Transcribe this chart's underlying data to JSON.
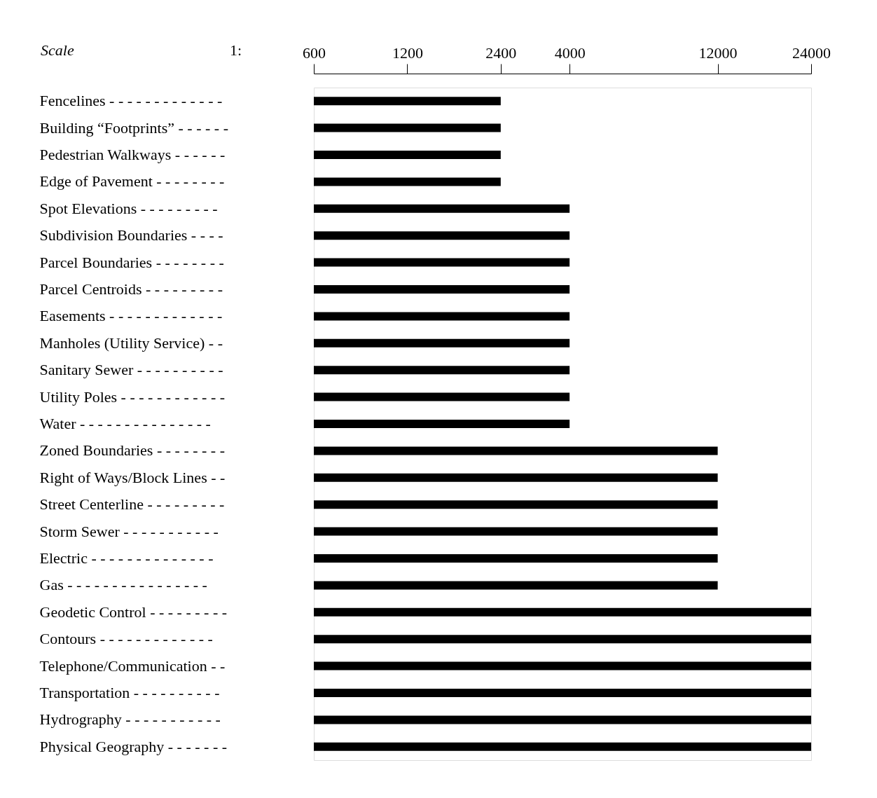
{
  "chart_data": {
    "type": "bar",
    "orientation": "horizontal",
    "xlabel": "Scale",
    "annotations": [
      "1:"
    ],
    "categories": [
      "Fencelines - - - - - - - - - - - - -",
      "Building “Footprints” - - - - - -",
      "Pedestrian Walkways - - - - - -",
      "Edge of Pavement  - - - - - - - -",
      "Spot Elevations   - - - - - - - - -",
      "Subdivision Boundaries  - - - -",
      "Parcel Boundaries - - - - - - - -",
      "Parcel Centroids  - - - - - - - - -",
      "Easements  - - - - - - - - - - - - -",
      "Manholes (Utility Service)  - -",
      "Sanitary Sewer - - - - - - - - - -",
      "Utility Poles - - - - - - - - - - - -",
      "Water  - - - - - - - - - - - - - - -",
      "Zoned Boundaries - - - - - - - -",
      "Right of Ways/Block Lines - -",
      "Street Centerline - - - - - - - - -",
      "Storm Sewer  - - - - - - - - - - -",
      "Electric  - - - - - - - - - - - - - -",
      "Gas  - - - - - - - - - - - - - - - -",
      "Geodetic Control - - - - - - - - -",
      "Contours - - - - - - - - - - - - -",
      "Telephone/Communication  - -",
      "Transportation  - - - - - - - - - -",
      "Hydrography  - - - - - - - - - - -",
      "Physical Geography - - - - - - -"
    ],
    "base": [
      600,
      600,
      600,
      600,
      600,
      600,
      600,
      600,
      600,
      600,
      600,
      600,
      600,
      600,
      600,
      600,
      600,
      600,
      600,
      600,
      600,
      600,
      600,
      600,
      600
    ],
    "values": [
      1800,
      1800,
      1800,
      1800,
      3400,
      3400,
      3400,
      3400,
      3400,
      3400,
      3400,
      3400,
      3400,
      11400,
      11400,
      11400,
      11400,
      11400,
      11400,
      23400,
      23400,
      23400,
      23400,
      23400,
      23400
    ],
    "color": "#000000",
    "xlim": [
      600,
      24000
    ],
    "xticks": [
      600,
      1200,
      2400,
      4000,
      12000,
      24000
    ],
    "log": "x",
    "grid": false
  }
}
